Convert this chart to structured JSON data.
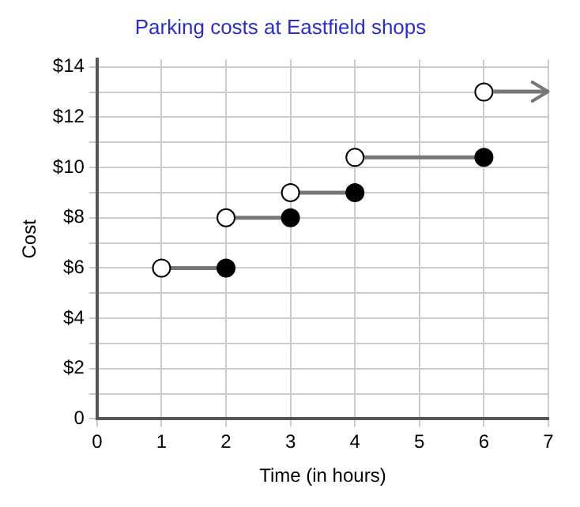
{
  "chart_data": {
    "type": "line",
    "title": "Parking costs at Eastfield shops",
    "xlabel": "Time (in hours)",
    "ylabel": "Cost",
    "xlim": [
      0,
      7
    ],
    "xticks": [
      0,
      1,
      2,
      3,
      4,
      5,
      6,
      7
    ],
    "ylim": [
      0,
      14.3
    ],
    "yticks": [
      0,
      {
        "value": 1,
        "label": null
      },
      {
        "value": 2,
        "label": "$2"
      },
      {
        "value": 3,
        "label": null
      },
      {
        "value": 4,
        "label": "$4"
      },
      {
        "value": 5,
        "label": null
      },
      {
        "value": 6,
        "label": "$6"
      },
      {
        "value": 7,
        "label": null
      },
      {
        "value": 8,
        "label": "$8"
      },
      {
        "value": 9,
        "label": null
      },
      {
        "value": 10,
        "label": "$10"
      },
      {
        "value": 11,
        "label": null
      },
      {
        "value": 12,
        "label": "$12"
      },
      {
        "value": 13,
        "label": null
      },
      {
        "value": 14,
        "label": "$14"
      }
    ],
    "grid": true,
    "legend": false,
    "series": [
      {
        "color": "#777777",
        "marker": "none",
        "x": [
          1,
          2
        ],
        "values": [
          6,
          6
        ]
      },
      {
        "color": "#777777",
        "marker": "none",
        "x": [
          2,
          3
        ],
        "values": [
          8,
          8
        ]
      },
      {
        "color": "#777777",
        "marker": "none",
        "x": [
          3,
          4
        ],
        "values": [
          9,
          9
        ]
      },
      {
        "color": "#777777",
        "marker": "none",
        "x": [
          4,
          6
        ],
        "values": [
          10.4,
          10.4
        ]
      },
      {
        "type": "scatter",
        "color": "#ffffff",
        "marker": "circle",
        "x": [
          1,
          2,
          3,
          4,
          6
        ],
        "values": [
          6,
          8,
          9,
          10.4,
          13
        ]
      },
      {
        "type": "scatter",
        "color": "#000000",
        "marker": "circle",
        "x": [
          2,
          3,
          4,
          6
        ],
        "values": [
          6,
          8,
          9,
          10.4
        ]
      }
    ]
  }
}
